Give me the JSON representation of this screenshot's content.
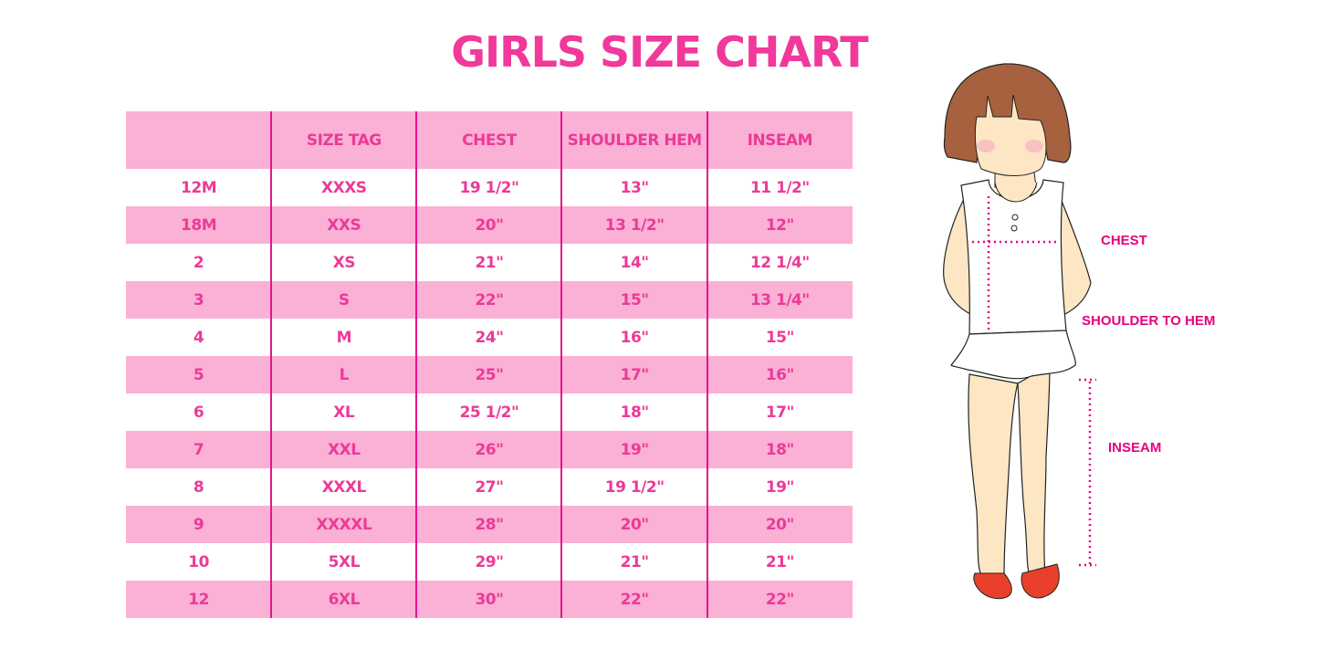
{
  "title": "GIRLS SIZE CHART",
  "table": {
    "headers": [
      "",
      "SIZE TAG",
      "CHEST",
      "SHOULDER HEM",
      "INSEAM"
    ],
    "rows": [
      [
        "12M",
        "XXXS",
        "19 1/2\"",
        "13\"",
        "11 1/2\""
      ],
      [
        "18M",
        "XXS",
        "20\"",
        "13 1/2\"",
        "12\""
      ],
      [
        "2",
        "XS",
        "21\"",
        "14\"",
        "12 1/4\""
      ],
      [
        "3",
        "S",
        "22\"",
        "15\"",
        "13 1/4\""
      ],
      [
        "4",
        "M",
        "24\"",
        "16\"",
        "15\""
      ],
      [
        "5",
        "L",
        "25\"",
        "17\"",
        "16\""
      ],
      [
        "6",
        "XL",
        "25 1/2\"",
        "18\"",
        "17\""
      ],
      [
        "7",
        "XXL",
        "26\"",
        "19\"",
        "18\""
      ],
      [
        "8",
        "XXXL",
        "27\"",
        "19 1/2\"",
        "19\""
      ],
      [
        "9",
        "XXXXL",
        "28\"",
        "20\"",
        "20\""
      ],
      [
        "10",
        "5XL",
        "29\"",
        "21\"",
        "21\""
      ],
      [
        "12",
        "6XL",
        "30\"",
        "22\"",
        "22\""
      ]
    ]
  },
  "figure": {
    "labels": {
      "chest": "CHEST",
      "shoulder_to_hem": "SHOULDER TO HEM",
      "inseam": "INSEAM"
    }
  },
  "colors": {
    "accent": "#ec3a97",
    "row_stripe": "#fbb0d6",
    "divider": "#e5148c"
  }
}
